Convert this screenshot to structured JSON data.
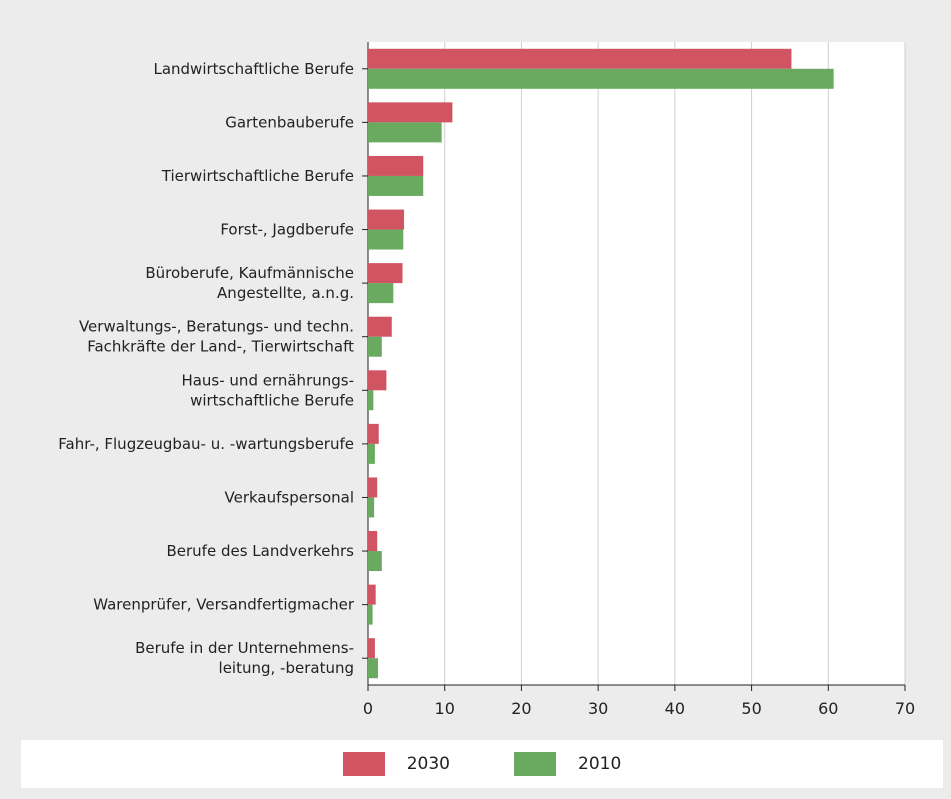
{
  "chart_data": {
    "type": "bar",
    "orientation": "horizontal",
    "categories": [
      [
        "Landwirtschaftliche Berufe"
      ],
      [
        "Gartenbauberufe"
      ],
      [
        "Tierwirtschaftliche Berufe"
      ],
      [
        "Forst-, Jagdberufe"
      ],
      [
        "Büroberufe, Kaufmännische",
        "Angestellte, a.n.g."
      ],
      [
        "Verwaltungs-, Beratungs- und techn.",
        "Fachkräfte der Land-, Tierwirtschaft"
      ],
      [
        "Haus- und ernährungs-",
        "wirtschaftliche Berufe"
      ],
      [
        "Fahr-, Flugzeugbau- u. -wartungsberufe"
      ],
      [
        "Verkaufspersonal"
      ],
      [
        "Berufe des Landverkehrs"
      ],
      [
        "Warenprüfer, Versandfertigmacher"
      ],
      [
        "Berufe in der Unternehmens-",
        "leitung, -beratung"
      ]
    ],
    "series": [
      {
        "name": "2030",
        "color": "#d05461",
        "values": [
          55.2,
          11.0,
          7.2,
          4.7,
          4.5,
          3.1,
          2.4,
          1.4,
          1.2,
          1.2,
          1.0,
          0.9
        ]
      },
      {
        "name": "2010",
        "color": "#6aaa60",
        "values": [
          60.7,
          9.6,
          7.2,
          4.6,
          3.3,
          1.8,
          0.7,
          0.9,
          0.8,
          1.8,
          0.6,
          1.3
        ]
      }
    ],
    "xlim": [
      0,
      70
    ],
    "xticks": [
      "0",
      "10",
      "20",
      "30",
      "40",
      "50",
      "60",
      "70"
    ],
    "grid": true,
    "legend_position": "bottom"
  }
}
